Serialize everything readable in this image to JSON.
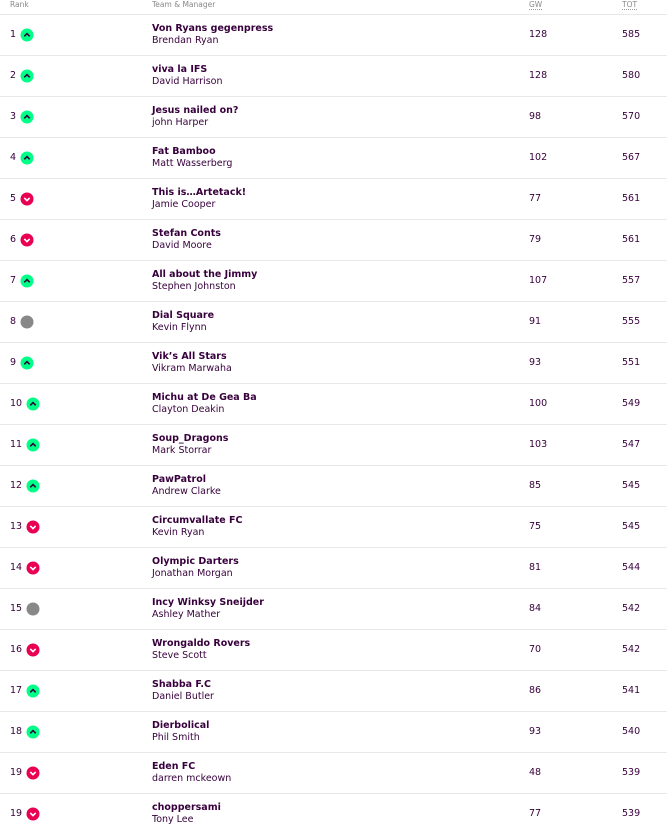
{
  "table": {
    "columns": [
      "Rank",
      "Team & Manager",
      "GW",
      "TOT"
    ],
    "rows": [
      {
        "rank": 1,
        "movement": "up",
        "team": "Von Ryans gegenpress",
        "manager": "Brendan Ryan",
        "gw": 128,
        "tot": 585
      },
      {
        "rank": 2,
        "movement": "up",
        "team": "viva la IFS",
        "manager": "David Harrison",
        "gw": 128,
        "tot": 580
      },
      {
        "rank": 3,
        "movement": "up",
        "team": "Jesus nailed on?",
        "manager": "john Harper",
        "gw": 98,
        "tot": 570
      },
      {
        "rank": 4,
        "movement": "up",
        "team": "Fat Bamboo",
        "manager": "Matt Wasserberg",
        "gw": 102,
        "tot": 567
      },
      {
        "rank": 5,
        "movement": "down",
        "team": "This is…Artetack!",
        "manager": "Jamie Cooper",
        "gw": 77,
        "tot": 561
      },
      {
        "rank": 6,
        "movement": "down",
        "team": "Stefan Conts",
        "manager": "David Moore",
        "gw": 79,
        "tot": 561
      },
      {
        "rank": 7,
        "movement": "up",
        "team": "All about the Jimmy",
        "manager": "Stephen Johnston",
        "gw": 107,
        "tot": 557
      },
      {
        "rank": 8,
        "movement": "same",
        "team": "Dial Square",
        "manager": "Kevin Flynn",
        "gw": 91,
        "tot": 555
      },
      {
        "rank": 9,
        "movement": "up",
        "team": "Vik’s All Stars",
        "manager": "Vikram Marwaha",
        "gw": 93,
        "tot": 551
      },
      {
        "rank": 10,
        "movement": "up",
        "team": "Michu at De Gea Ba",
        "manager": "Clayton Deakin",
        "gw": 100,
        "tot": 549
      },
      {
        "rank": 11,
        "movement": "up",
        "team": "Soup_Dragons",
        "manager": "Mark Storrar",
        "gw": 103,
        "tot": 547
      },
      {
        "rank": 12,
        "movement": "up",
        "team": "PawPatrol",
        "manager": "Andrew Clarke",
        "gw": 85,
        "tot": 545
      },
      {
        "rank": 13,
        "movement": "down",
        "team": "Circumvallate FC",
        "manager": "Kevin Ryan",
        "gw": 75,
        "tot": 545
      },
      {
        "rank": 14,
        "movement": "down",
        "team": "Olympic Darters",
        "manager": "Jonathan Morgan",
        "gw": 81,
        "tot": 544
      },
      {
        "rank": 15,
        "movement": "same",
        "team": "Incy Winksy Sneijder",
        "manager": "Ashley Mather",
        "gw": 84,
        "tot": 542
      },
      {
        "rank": 16,
        "movement": "down",
        "team": "Wrongaldo Rovers",
        "manager": "Steve Scott",
        "gw": 70,
        "tot": 542
      },
      {
        "rank": 17,
        "movement": "up",
        "team": "Shabba F.C",
        "manager": "Daniel Butler",
        "gw": 86,
        "tot": 541
      },
      {
        "rank": 18,
        "movement": "up",
        "team": "Dierbolical",
        "manager": "Phil Smith",
        "gw": 93,
        "tot": 540
      },
      {
        "rank": 19,
        "movement": "down",
        "team": "Eden FC",
        "manager": "darren mckeown",
        "gw": 48,
        "tot": 539
      },
      {
        "rank": 19,
        "movement": "down",
        "team": "choppersami",
        "manager": "Tony Lee",
        "gw": 77,
        "tot": 539
      }
    ]
  }
}
